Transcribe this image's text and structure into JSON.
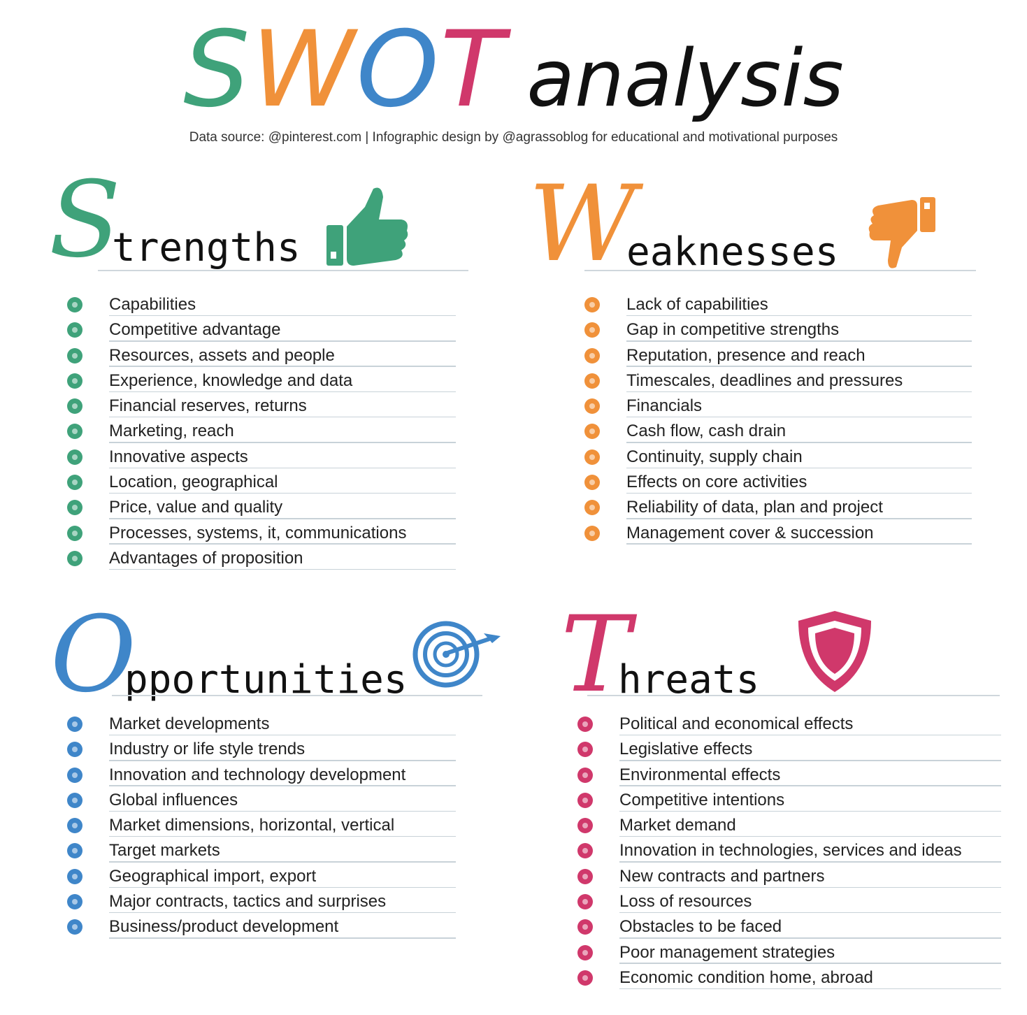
{
  "header": {
    "title_letters": [
      {
        "char": "S",
        "color": "#3fa27a"
      },
      {
        "char": "W",
        "color": "#f0913a"
      },
      {
        "char": "O",
        "color": "#3f86c9"
      },
      {
        "char": "T",
        "color": "#d0386b"
      }
    ],
    "title_word": "analysis",
    "subtitle": "Data source: @pinterest.com | Infographic design by @agrassoblog for educational and motivational purposes"
  },
  "quadrants": {
    "strengths": {
      "initial": "S",
      "rest": "trengths",
      "color": "#3fa27a",
      "icon": "thumbs-up-icon",
      "items": [
        "Capabilities",
        "Competitive advantage",
        "Resources, assets and people",
        "Experience, knowledge and data",
        "Financial reserves, returns",
        "Marketing, reach",
        "Innovative aspects",
        "Location, geographical",
        "Price, value and quality",
        "Processes, systems, it, communications",
        "Advantages of proposition"
      ]
    },
    "weaknesses": {
      "initial": "W",
      "rest": "eaknesses",
      "color": "#f0913a",
      "icon": "thumbs-down-icon",
      "items": [
        "Lack of capabilities",
        "Gap in competitive strengths",
        "Reputation, presence and reach",
        "Timescales, deadlines and pressures",
        "Financials",
        "Cash flow, cash drain",
        "Continuity, supply chain",
        "Effects on core activities",
        "Reliability of data, plan and project",
        "Management cover & succession"
      ]
    },
    "opportunities": {
      "initial": "O",
      "rest": "pportunities",
      "color": "#3f86c9",
      "icon": "target-icon",
      "items": [
        "Market developments",
        "Industry or life style trends",
        "Innovation and technology development",
        "Global influences",
        "Market dimensions, horizontal, vertical",
        "Target markets",
        "Geographical import, export",
        "Major contracts, tactics and surprises",
        "Business/product development"
      ]
    },
    "threats": {
      "initial": "T",
      "rest": "hreats",
      "color": "#d0386b",
      "icon": "shield-icon",
      "items": [
        "Political and economical effects",
        "Legislative effects",
        "Environmental effects",
        "Competitive intentions",
        "Market demand",
        "Innovation in technologies, services and ideas",
        "New contracts and partners",
        "Loss of resources",
        "Obstacles to be faced",
        "Poor management strategies",
        "Economic condition home, abroad"
      ]
    }
  }
}
